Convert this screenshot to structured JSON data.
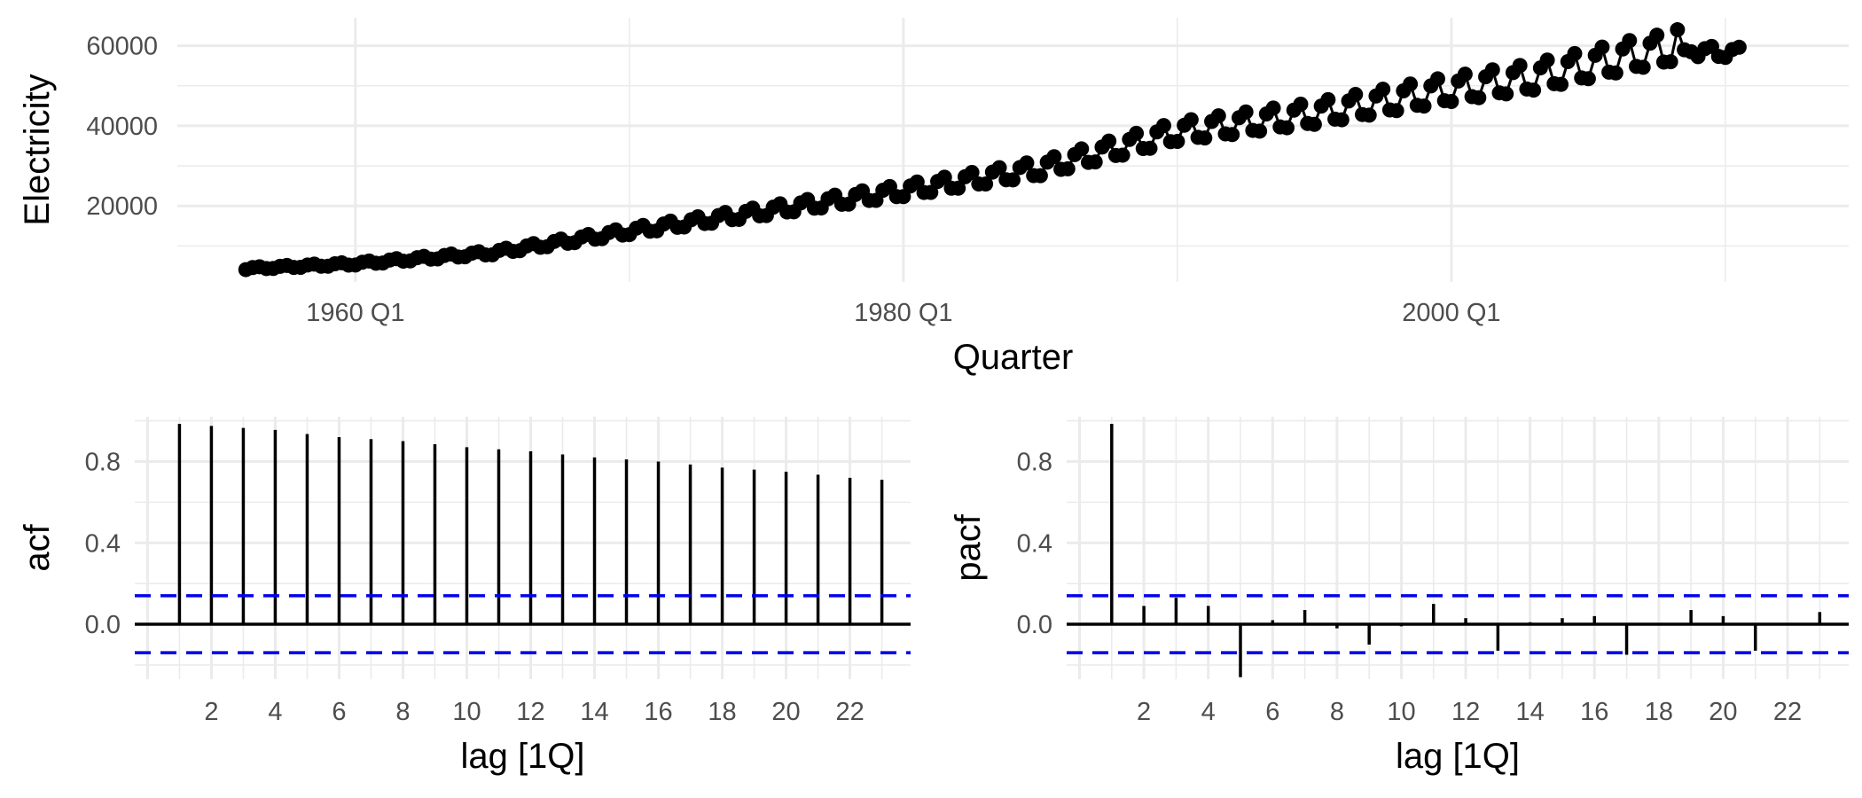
{
  "chart_data": [
    {
      "type": "line",
      "xlabel": "Quarter",
      "ylabel": "Electricity",
      "x_range": [
        1953.5,
        2014.5
      ],
      "ylim": [
        1000,
        67000
      ],
      "x_ticks": [
        {
          "value": 1960,
          "label": "1960 Q1"
        },
        {
          "value": 1980,
          "label": "1980 Q1"
        },
        {
          "value": 2000,
          "label": "2000 Q1"
        }
      ],
      "y_ticks": [
        {
          "value": 20000,
          "label": "20000"
        },
        {
          "value": 40000,
          "label": "40000"
        },
        {
          "value": 60000,
          "label": "60000"
        }
      ],
      "series": [
        {
          "start_year": 1956,
          "start_quarter": 1,
          "quarter_ratios": [
            0.95,
            1.05,
            1.08,
            0.96
          ],
          "trend": [
            [
              1956,
              4300
            ],
            [
              1960,
              5500
            ],
            [
              1965,
              8200
            ],
            [
              1970,
              13500
            ],
            [
              1975,
              18500
            ],
            [
              1980,
              23500
            ],
            [
              1985,
              29000
            ],
            [
              1990,
              38000
            ],
            [
              1995,
              42500
            ],
            [
              2000,
              48500
            ],
            [
              2003,
              51500
            ],
            [
              2005,
              54500
            ],
            [
              2007,
              57500
            ],
            [
              2008,
              58500
            ],
            [
              2010.5,
              58000
            ]
          ],
          "points": [
            {
              "x": 2008.0,
              "y": 56000
            },
            {
              "x": 2008.25,
              "y": 64000
            },
            {
              "x": 2008.5,
              "y": 59000
            },
            {
              "x": 2008.75,
              "y": 58500
            }
          ]
        }
      ]
    },
    {
      "type": "bar",
      "xlabel": "lag [1Q]",
      "ylabel": "acf",
      "x_range": [
        -0.4,
        23.9
      ],
      "ylim": [
        -0.27,
        1.02
      ],
      "x_ticks": [
        2,
        4,
        6,
        8,
        10,
        12,
        14,
        16,
        18,
        20,
        22
      ],
      "y_ticks": [
        {
          "value": 0.0,
          "label": "0.0"
        },
        {
          "value": 0.4,
          "label": "0.4"
        },
        {
          "value": 0.8,
          "label": "0.8"
        }
      ],
      "lags": [
        1,
        2,
        3,
        4,
        5,
        6,
        7,
        8,
        9,
        10,
        11,
        12,
        13,
        14,
        15,
        16,
        17,
        18,
        19,
        20,
        21,
        22,
        23
      ],
      "values": [
        0.985,
        0.975,
        0.965,
        0.955,
        0.935,
        0.92,
        0.91,
        0.9,
        0.885,
        0.87,
        0.86,
        0.85,
        0.835,
        0.82,
        0.81,
        0.8,
        0.785,
        0.77,
        0.76,
        0.75,
        0.735,
        0.72,
        0.71
      ],
      "ci": 0.14
    },
    {
      "type": "bar",
      "xlabel": "lag [1Q]",
      "ylabel": "pacf",
      "x_range": [
        -0.4,
        23.9
      ],
      "ylim": [
        -0.27,
        1.02
      ],
      "x_ticks": [
        2,
        4,
        6,
        8,
        10,
        12,
        14,
        16,
        18,
        20,
        22
      ],
      "y_ticks": [
        {
          "value": 0.0,
          "label": "0.0"
        },
        {
          "value": 0.4,
          "label": "0.4"
        },
        {
          "value": 0.8,
          "label": "0.8"
        }
      ],
      "lags": [
        1,
        2,
        3,
        4,
        5,
        6,
        7,
        8,
        9,
        10,
        11,
        12,
        13,
        14,
        15,
        16,
        17,
        18,
        19,
        20,
        21,
        22,
        23
      ],
      "values": [
        0.985,
        0.09,
        0.13,
        0.09,
        -0.26,
        0.02,
        0.07,
        -0.02,
        -0.1,
        -0.01,
        0.1,
        0.03,
        -0.13,
        0.01,
        0.03,
        0.04,
        -0.15,
        0.0,
        0.07,
        0.04,
        -0.13,
        0.0,
        0.06
      ],
      "ci": 0.14
    }
  ],
  "colors": {
    "series": "#000000",
    "ci_line": "#0000ee",
    "grid": "#ebebeb",
    "tick_text": "#4d4d4d"
  }
}
